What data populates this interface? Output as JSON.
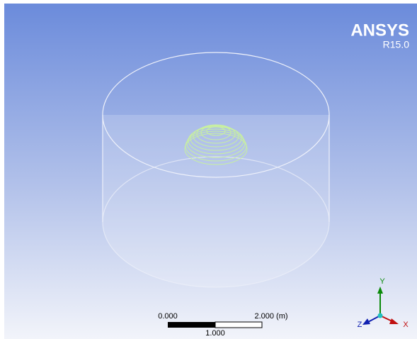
{
  "logo": {
    "brand": "ANSYS",
    "version": "R15.0"
  },
  "scale_bar": {
    "start": "0.000",
    "end": "2.000 (m)",
    "middle": "1.000"
  },
  "triad": {
    "y": "Y",
    "z": "Z",
    "x": "X"
  }
}
